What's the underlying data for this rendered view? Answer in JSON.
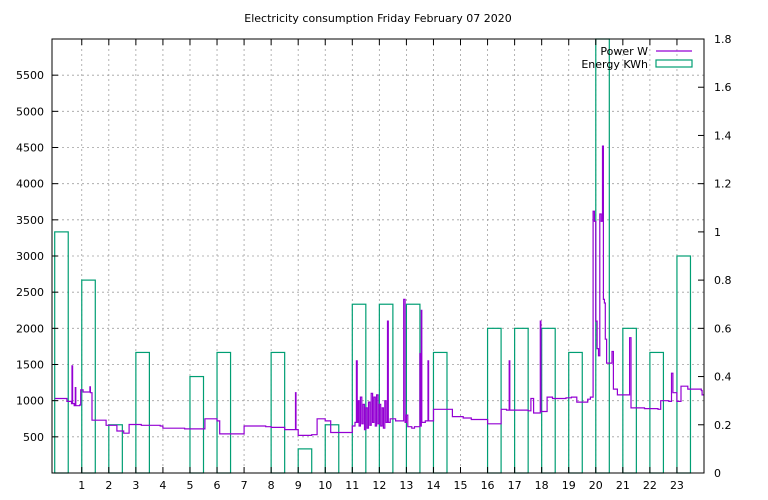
{
  "chart_data": {
    "type": "line",
    "title": "Electricity consumption Friday February 07 2020",
    "xlabel": "",
    "ylabel": "",
    "y2label": "",
    "xlim": [
      -0.1,
      24.0
    ],
    "x_ticks": [
      1,
      2,
      3,
      4,
      5,
      6,
      7,
      8,
      9,
      10,
      11,
      12,
      13,
      14,
      15,
      16,
      17,
      18,
      19,
      20,
      21,
      22,
      23
    ],
    "ylim": [
      0,
      6000
    ],
    "y_ticks": [
      500,
      1000,
      1500,
      2000,
      2500,
      3000,
      3500,
      4000,
      4500,
      5000,
      5500
    ],
    "y2lim": [
      0,
      1.8
    ],
    "y2_ticks": [
      0,
      0.2,
      0.4,
      0.6,
      0.8,
      1,
      1.2,
      1.4,
      1.6,
      1.8
    ],
    "y2_tick_labels": [
      "0",
      "0.2",
      "0.4",
      "0.6",
      "0.8",
      "1",
      "1.2",
      "1.4",
      "1.6",
      "1.8"
    ],
    "grid": true,
    "legend_position": "top-right",
    "colors": {
      "power": "#9400d3",
      "energy": "#009e73",
      "grid": "#a0a0a0",
      "axis": "#000000"
    },
    "series": [
      {
        "name": "Power W",
        "type": "step-line",
        "axis": "left",
        "points": [
          [
            0.0,
            1030
          ],
          [
            0.45,
            990
          ],
          [
            0.62,
            960
          ],
          [
            0.64,
            1480
          ],
          [
            0.66,
            960
          ],
          [
            0.72,
            930
          ],
          [
            0.76,
            1180
          ],
          [
            0.78,
            930
          ],
          [
            0.92,
            940
          ],
          [
            0.96,
            1150
          ],
          [
            1.05,
            1120
          ],
          [
            1.3,
            1190
          ],
          [
            1.32,
            1110
          ],
          [
            1.38,
            730
          ],
          [
            1.9,
            660
          ],
          [
            2.3,
            580
          ],
          [
            2.55,
            550
          ],
          [
            2.75,
            670
          ],
          [
            3.2,
            660
          ],
          [
            3.9,
            650
          ],
          [
            4.0,
            620
          ],
          [
            4.8,
            610
          ],
          [
            5.1,
            610
          ],
          [
            5.5,
            610
          ],
          [
            5.55,
            750
          ],
          [
            6.0,
            720
          ],
          [
            6.1,
            540
          ],
          [
            6.9,
            540
          ],
          [
            7.0,
            650
          ],
          [
            7.8,
            640
          ],
          [
            8.0,
            630
          ],
          [
            8.4,
            630
          ],
          [
            8.5,
            600
          ],
          [
            8.8,
            600
          ],
          [
            8.9,
            1110
          ],
          [
            8.92,
            600
          ],
          [
            9.0,
            520
          ],
          [
            9.5,
            530
          ],
          [
            9.7,
            750
          ],
          [
            10.0,
            720
          ],
          [
            10.2,
            560
          ],
          [
            10.9,
            560
          ],
          [
            11.0,
            650
          ],
          [
            11.1,
            700
          ],
          [
            11.15,
            1550
          ],
          [
            11.18,
            700
          ],
          [
            11.22,
            1000
          ],
          [
            11.25,
            650
          ],
          [
            11.3,
            1050
          ],
          [
            11.35,
            680
          ],
          [
            11.4,
            950
          ],
          [
            11.45,
            600
          ],
          [
            11.5,
            900
          ],
          [
            11.55,
            620
          ],
          [
            11.6,
            980
          ],
          [
            11.65,
            660
          ],
          [
            11.7,
            1100
          ],
          [
            11.75,
            700
          ],
          [
            11.8,
            1050
          ],
          [
            11.85,
            650
          ],
          [
            11.9,
            1080
          ],
          [
            11.95,
            680
          ],
          [
            12.0,
            950
          ],
          [
            12.05,
            650
          ],
          [
            12.1,
            900
          ],
          [
            12.15,
            620
          ],
          [
            12.2,
            1000
          ],
          [
            12.25,
            700
          ],
          [
            12.3,
            2100
          ],
          [
            12.33,
            700
          ],
          [
            12.4,
            750
          ],
          [
            12.6,
            720
          ],
          [
            12.9,
            2400
          ],
          [
            12.95,
            700
          ],
          [
            13.0,
            800
          ],
          [
            13.05,
            640
          ],
          [
            13.2,
            620
          ],
          [
            13.3,
            640
          ],
          [
            13.5,
            1650
          ],
          [
            13.52,
            650
          ],
          [
            13.55,
            2250
          ],
          [
            13.57,
            700
          ],
          [
            13.7,
            720
          ],
          [
            13.8,
            1550
          ],
          [
            13.82,
            720
          ],
          [
            14.0,
            880
          ],
          [
            14.6,
            880
          ],
          [
            14.7,
            780
          ],
          [
            15.1,
            760
          ],
          [
            15.4,
            740
          ],
          [
            15.8,
            740
          ],
          [
            16.0,
            680
          ],
          [
            16.5,
            880
          ],
          [
            16.7,
            870
          ],
          [
            16.8,
            1550
          ],
          [
            16.82,
            870
          ],
          [
            17.5,
            860
          ],
          [
            17.6,
            1030
          ],
          [
            17.7,
            830
          ],
          [
            17.95,
            2100
          ],
          [
            17.97,
            850
          ],
          [
            18.2,
            1050
          ],
          [
            18.4,
            1030
          ],
          [
            18.9,
            1040
          ],
          [
            19.1,
            1050
          ],
          [
            19.3,
            980
          ],
          [
            19.7,
            1020
          ],
          [
            19.8,
            1050
          ],
          [
            19.9,
            3620
          ],
          [
            19.95,
            3480
          ],
          [
            20.0,
            2100
          ],
          [
            20.05,
            1720
          ],
          [
            20.1,
            1620
          ],
          [
            20.15,
            3580
          ],
          [
            20.2,
            3480
          ],
          [
            20.25,
            4520
          ],
          [
            20.28,
            2400
          ],
          [
            20.32,
            2350
          ],
          [
            20.35,
            1850
          ],
          [
            20.4,
            1520
          ],
          [
            20.6,
            1680
          ],
          [
            20.65,
            1160
          ],
          [
            20.8,
            1080
          ],
          [
            21.2,
            1080
          ],
          [
            21.25,
            1870
          ],
          [
            21.3,
            900
          ],
          [
            21.8,
            890
          ],
          [
            22.3,
            880
          ],
          [
            22.4,
            1000
          ],
          [
            22.7,
            990
          ],
          [
            22.8,
            1380
          ],
          [
            22.85,
            1110
          ],
          [
            23.0,
            990
          ],
          [
            23.15,
            1200
          ],
          [
            23.4,
            1160
          ],
          [
            23.9,
            1140
          ],
          [
            23.93,
            1080
          ]
        ]
      },
      {
        "name": "Energy KWh",
        "type": "boxes",
        "axis": "right",
        "boxes": [
          {
            "x": 0,
            "value": 1.0
          },
          {
            "x": 1,
            "value": 0.8
          },
          {
            "x": 2,
            "value": 0.2
          },
          {
            "x": 3,
            "value": 0.5
          },
          {
            "x": 4,
            "value": 0.0
          },
          {
            "x": 5,
            "value": 0.4
          },
          {
            "x": 6,
            "value": 0.5
          },
          {
            "x": 7,
            "value": 0.0
          },
          {
            "x": 8,
            "value": 0.5
          },
          {
            "x": 9,
            "value": 0.1
          },
          {
            "x": 10,
            "value": 0.2
          },
          {
            "x": 11,
            "value": 0.7
          },
          {
            "x": 12,
            "value": 0.7
          },
          {
            "x": 13,
            "value": 0.7
          },
          {
            "x": 14,
            "value": 0.5
          },
          {
            "x": 15,
            "value": 0.0
          },
          {
            "x": 16,
            "value": 0.6
          },
          {
            "x": 17,
            "value": 0.6
          },
          {
            "x": 18,
            "value": 0.6
          },
          {
            "x": 19,
            "value": 0.5
          },
          {
            "x": 20,
            "value": 1.8
          },
          {
            "x": 21,
            "value": 0.6
          },
          {
            "x": 22,
            "value": 0.5
          },
          {
            "x": 23,
            "value": 0.9
          }
        ]
      }
    ]
  }
}
